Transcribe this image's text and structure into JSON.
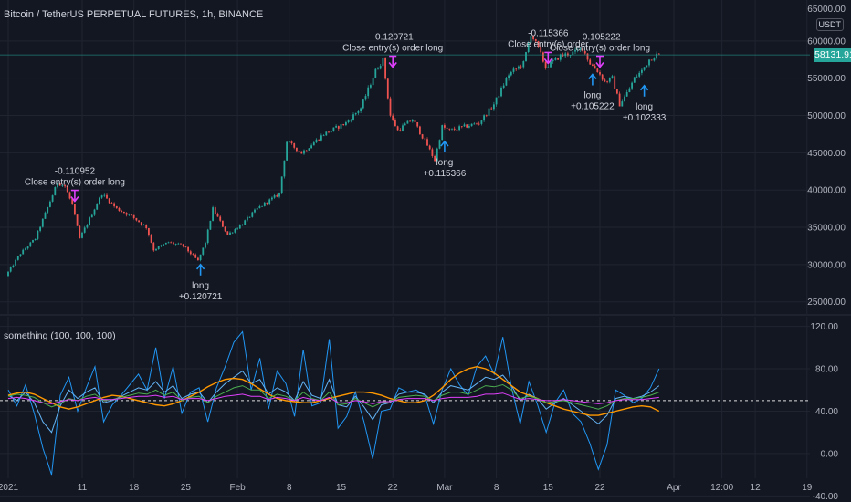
{
  "header": {
    "symbol_title": "Bitcoin / TetherUS PERPETUAL FUTURES, 1h, BINANCE",
    "indicator_title": "something (100, 100, 100)",
    "currency_badge": "USDT",
    "last_price": "58131.91"
  },
  "colors": {
    "background": "#131722",
    "grid": "#1f2430",
    "up_candle": "#26a69a",
    "down_candle": "#ef5350",
    "price_line": "#26a69a",
    "entry_arrow": "#2196f3",
    "exit_marker": "#e040fb",
    "osc_fast": "#2196f3",
    "osc_mid": "#64b5f6",
    "osc_orange": "#ff9800",
    "osc_green": "#4caf50",
    "osc_purple": "#e040fb",
    "midline": "#ffffff"
  },
  "chart_data": [
    {
      "type": "candlestick",
      "title": "Bitcoin / TetherUS PERPETUAL FUTURES, 1h, BINANCE",
      "y_axis_ticks": [
        "25000.00",
        "30000.00",
        "35000.00",
        "40000.00",
        "45000.00",
        "50000.00",
        "55000.00",
        "60000.00"
      ],
      "x_axis_ticks": [
        "2021",
        "11",
        "18",
        "25",
        "Feb",
        "8",
        "15",
        "22",
        "Mar",
        "8",
        "15",
        "22",
        "Apr",
        "12:00",
        "12",
        "19"
      ],
      "ylim": [
        23500,
        65000
      ],
      "last_price": 58131.91,
      "price_path": [
        [
          "2021-01-01",
          28500
        ],
        [
          "2021-01-03",
          31500
        ],
        [
          "2021-01-05",
          33500
        ],
        [
          "2021-01-06",
          36000
        ],
        [
          "2021-01-08",
          41000
        ],
        [
          "2021-01-09",
          40500
        ],
        [
          "2021-01-10",
          38000
        ],
        [
          "2021-01-11",
          33500
        ],
        [
          "2021-01-12",
          35500
        ],
        [
          "2021-01-14",
          39500
        ],
        [
          "2021-01-16",
          37500
        ],
        [
          "2021-01-18",
          36500
        ],
        [
          "2021-01-20",
          35000
        ],
        [
          "2021-01-21",
          32000
        ],
        [
          "2021-01-23",
          33000
        ],
        [
          "2021-01-25",
          32500
        ],
        [
          "2021-01-27",
          30500
        ],
        [
          "2021-01-28",
          33000
        ],
        [
          "2021-01-29",
          37500
        ],
        [
          "2021-01-31",
          34000
        ],
        [
          "2021-02-02",
          35500
        ],
        [
          "2021-02-04",
          37500
        ],
        [
          "2021-02-07",
          39500
        ],
        [
          "2021-02-08",
          46500
        ],
        [
          "2021-02-10",
          45000
        ],
        [
          "2021-02-13",
          47500
        ],
        [
          "2021-02-16",
          49000
        ],
        [
          "2021-02-18",
          51000
        ],
        [
          "2021-02-20",
          56000
        ],
        [
          "2021-02-21",
          57500
        ],
        [
          "2021-02-22",
          50000
        ],
        [
          "2021-02-23",
          48000
        ],
        [
          "2021-02-25",
          49500
        ],
        [
          "2021-02-27",
          46000
        ],
        [
          "2021-02-28",
          44000
        ],
        [
          "2021-03-01",
          48500
        ],
        [
          "2021-03-02",
          48000
        ],
        [
          "2021-03-04",
          48500
        ],
        [
          "2021-03-06",
          49000
        ],
        [
          "2021-03-08",
          51500
        ],
        [
          "2021-03-10",
          55500
        ],
        [
          "2021-03-12",
          57000
        ],
        [
          "2021-03-13",
          61000
        ],
        [
          "2021-03-14",
          59000
        ],
        [
          "2021-03-15",
          56500
        ],
        [
          "2021-03-17",
          58000
        ],
        [
          "2021-03-19",
          58500
        ],
        [
          "2021-03-20",
          59000
        ],
        [
          "2021-03-21",
          57000
        ],
        [
          "2021-03-22",
          56000
        ],
        [
          "2021-03-23",
          54500
        ],
        [
          "2021-03-24",
          55000
        ],
        [
          "2021-03-25",
          51500
        ],
        [
          "2021-03-26",
          53000
        ],
        [
          "2021-03-27",
          55000
        ],
        [
          "2021-03-28",
          56000
        ],
        [
          "2021-03-29",
          57500
        ],
        [
          "2021-03-30",
          58131.91
        ]
      ],
      "annotations": [
        {
          "kind": "exit",
          "date": "2021-01-10",
          "price": 38000,
          "lines": [
            "-0.110952",
            "Close entry(s) order long"
          ]
        },
        {
          "kind": "entry",
          "date": "2021-01-27",
          "price": 30500,
          "lines": [
            "long",
            "+0.120721"
          ]
        },
        {
          "kind": "exit",
          "date": "2021-02-22",
          "price": 56000,
          "lines": [
            "-0.120721",
            "Close entry(s) order long"
          ]
        },
        {
          "kind": "entry",
          "date": "2021-03-01",
          "price": 47000,
          "lines": [
            "long",
            "+0.115366"
          ]
        },
        {
          "kind": "exit",
          "date": "2021-03-15",
          "price": 56500,
          "lines": [
            "-0.115366",
            "Close entry(s) order"
          ]
        },
        {
          "kind": "entry",
          "date": "2021-03-21",
          "price": 56000,
          "lines": [
            "long",
            "+0.105222"
          ]
        },
        {
          "kind": "exit",
          "date": "2021-03-22",
          "price": 56000,
          "lines": [
            "-0.105222",
            "Close entry(s) order long"
          ]
        },
        {
          "kind": "entry",
          "date": "2021-03-28",
          "price": 54500,
          "lines": [
            "long",
            "+0.102333"
          ]
        }
      ]
    },
    {
      "type": "line",
      "title": "something (100, 100, 100)",
      "y_axis_ticks": [
        "-40.00",
        "0.00",
        "40.00",
        "80.00",
        "120.00"
      ],
      "ylim": [
        -44,
        130
      ],
      "midline": 50,
      "series": [
        {
          "color": "#2196f3",
          "values": [
            60,
            45,
            65,
            38,
            5,
            -20,
            55,
            72,
            40,
            62,
            82,
            30,
            46,
            55,
            65,
            75,
            60,
            100,
            52,
            82,
            38,
            58,
            62,
            30,
            62,
            82,
            105,
            115,
            60,
            90,
            42,
            78,
            66,
            35,
            98,
            45,
            48,
            108,
            24,
            35,
            58,
            30,
            -5,
            40,
            42,
            62,
            58,
            60,
            55,
            28,
            60,
            80,
            65,
            55,
            82,
            92,
            75,
            110,
            62,
            28,
            68,
            46,
            20,
            48,
            60,
            38,
            30,
            10,
            -15,
            8,
            60,
            55,
            48,
            52,
            62,
            80
          ]
        },
        {
          "color": "#64b5f6",
          "values": [
            55,
            50,
            58,
            48,
            30,
            20,
            45,
            60,
            52,
            58,
            62,
            48,
            50,
            54,
            58,
            62,
            60,
            68,
            58,
            64,
            52,
            56,
            58,
            48,
            58,
            66,
            72,
            78,
            66,
            70,
            56,
            62,
            58,
            50,
            68,
            55,
            52,
            70,
            46,
            44,
            54,
            44,
            32,
            46,
            48,
            56,
            58,
            58,
            56,
            48,
            58,
            64,
            62,
            60,
            66,
            72,
            70,
            74,
            64,
            50,
            56,
            52,
            42,
            48,
            52,
            46,
            40,
            34,
            28,
            36,
            52,
            54,
            52,
            54,
            58,
            64
          ]
        },
        {
          "color": "#ff9800",
          "values": [
            55,
            57,
            58,
            56,
            52,
            48,
            44,
            42,
            44,
            47,
            50,
            53,
            55,
            54,
            52,
            50,
            48,
            46,
            45,
            47,
            50,
            54,
            58,
            63,
            67,
            70,
            71,
            70,
            66,
            61,
            56,
            52,
            50,
            49,
            48,
            48,
            50,
            52,
            54,
            56,
            58,
            58,
            57,
            55,
            52,
            50,
            48,
            48,
            50,
            55,
            62,
            70,
            76,
            80,
            82,
            80,
            76,
            70,
            64,
            58,
            55,
            52,
            48,
            45,
            42,
            40,
            38,
            36,
            36,
            38,
            40,
            42,
            44,
            45,
            44,
            40
          ]
        },
        {
          "color": "#4caf50",
          "values": [
            54,
            56,
            55,
            53,
            48,
            44,
            47,
            52,
            50,
            54,
            56,
            50,
            51,
            53,
            55,
            57,
            56,
            60,
            55,
            58,
            50,
            53,
            54,
            48,
            54,
            58,
            62,
            64,
            60,
            60,
            52,
            56,
            54,
            50,
            58,
            52,
            50,
            58,
            46,
            47,
            52,
            48,
            44,
            48,
            49,
            53,
            54,
            55,
            54,
            50,
            55,
            58,
            58,
            56,
            60,
            64,
            63,
            65,
            60,
            52,
            54,
            52,
            48,
            49,
            50,
            48,
            46,
            44,
            42,
            45,
            50,
            52,
            52,
            53,
            55,
            58
          ]
        },
        {
          "color": "#e040fb",
          "values": [
            52,
            53,
            52,
            50,
            48,
            47,
            49,
            51,
            50,
            52,
            53,
            51,
            51,
            52,
            53,
            54,
            54,
            55,
            53,
            54,
            51,
            52,
            52,
            50,
            52,
            54,
            55,
            56,
            54,
            54,
            51,
            53,
            52,
            50,
            53,
            51,
            50,
            53,
            48,
            48,
            50,
            49,
            47,
            49,
            49,
            51,
            52,
            52,
            52,
            50,
            52,
            53,
            53,
            53,
            54,
            56,
            56,
            57,
            54,
            51,
            52,
            51,
            50,
            50,
            51,
            50,
            49,
            48,
            47,
            48,
            50,
            51,
            51,
            51,
            52,
            53
          ]
        }
      ]
    }
  ]
}
